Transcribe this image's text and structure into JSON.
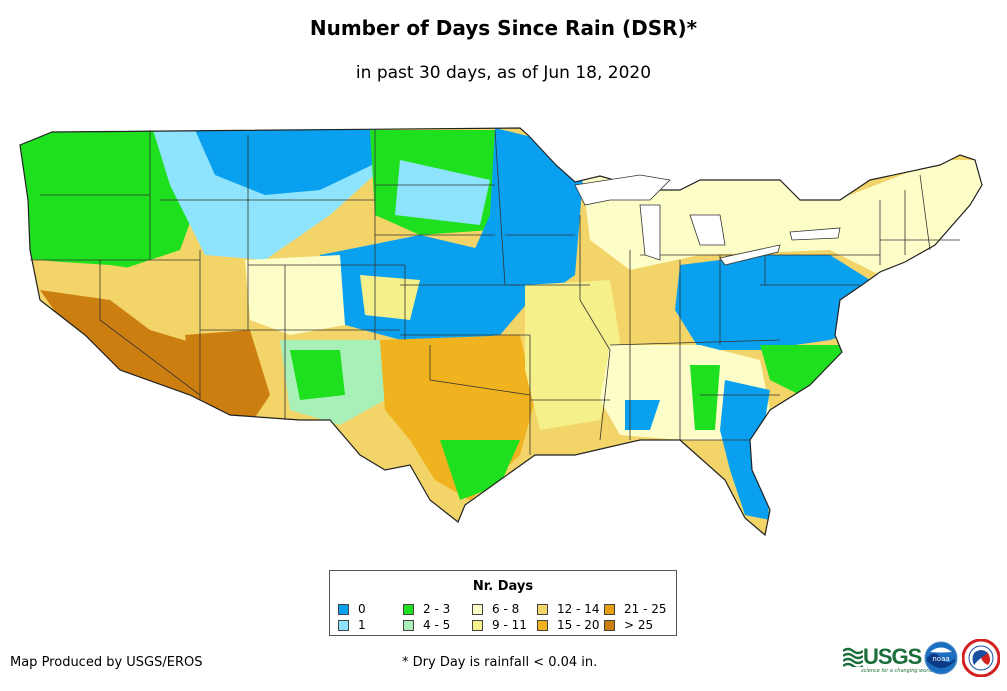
{
  "header": {
    "title": "Number of Days Since Rain (DSR)*",
    "subtitle": "in past 30 days, as of Jun 18, 2020"
  },
  "legend": {
    "title": "Nr. Days",
    "items": [
      {
        "label": "0",
        "color": "#0aa0f0"
      },
      {
        "label": "1",
        "color": "#8ee4fc"
      },
      {
        "label": "2 - 3",
        "color": "#1ee01e"
      },
      {
        "label": "4 - 5",
        "color": "#a8f0b8"
      },
      {
        "label": "6 - 8",
        "color": "#fdfdc8"
      },
      {
        "label": "9 - 11",
        "color": "#f6f08a"
      },
      {
        "label": "12 - 14",
        "color": "#f2d468"
      },
      {
        "label": "15 - 20",
        "color": "#f0b21e"
      },
      {
        "label": "21 - 25",
        "color": "#e69d10"
      },
      {
        "label": "> 25",
        "color": "#cc7e10"
      }
    ]
  },
  "footer": {
    "credit": "Map Produced by USGS/EROS",
    "note": "* Dry Day is rainfall < 0.04 in."
  },
  "logos": {
    "usgs_word": "USGS",
    "usgs_tagline": "science for a changing world",
    "noaa_text": "noaa"
  }
}
